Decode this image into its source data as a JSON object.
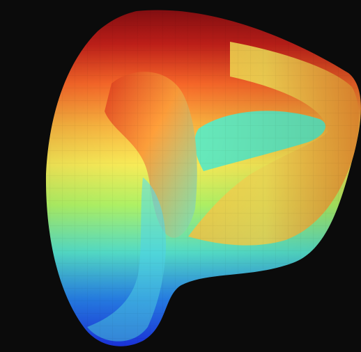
{
  "canvas": {
    "background": "#0b0b0b"
  },
  "surface": {
    "icon": "curved-surface-logo",
    "gradient_colors": [
      "#1f3bff",
      "#2a8cff",
      "#5bf0d8",
      "#b8ff6a",
      "#fff25a",
      "#ffb640",
      "#ff6a2a",
      "#c8201a",
      "#8e0f12"
    ]
  }
}
